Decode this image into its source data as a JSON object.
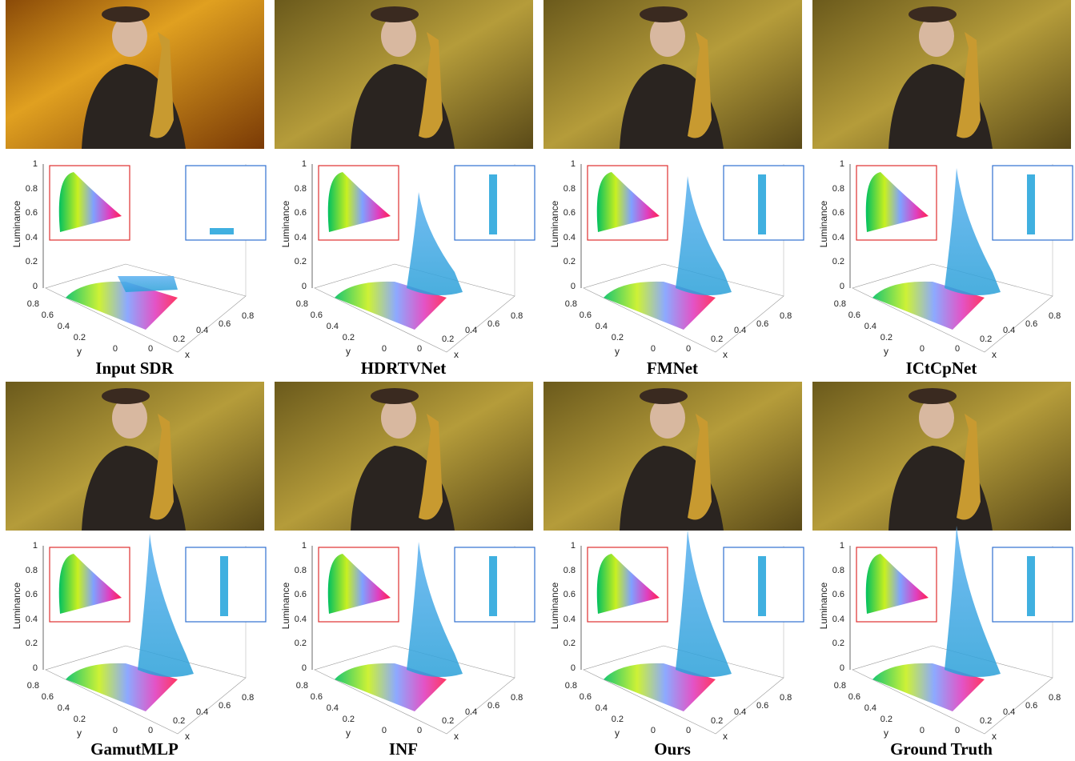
{
  "panels": [
    {
      "label": "Input SDR"
    },
    {
      "label": "HDRTVNet"
    },
    {
      "label": "FMNet"
    },
    {
      "label": "ICtCpNet"
    },
    {
      "label": "GamutMLP"
    },
    {
      "label": "INF"
    },
    {
      "label": "Ours"
    },
    {
      "label": "Ground Truth"
    }
  ],
  "plot": {
    "z_label": "Luminance",
    "z_ticks": [
      0,
      0.2,
      0.4,
      0.6,
      0.8,
      1
    ],
    "y_label": "y",
    "y_ticks": [
      0,
      0.2,
      0.4,
      0.6,
      0.8
    ],
    "x_label": "x",
    "x_ticks": [
      0,
      0.2,
      0.4,
      0.6,
      0.8
    ]
  }
}
